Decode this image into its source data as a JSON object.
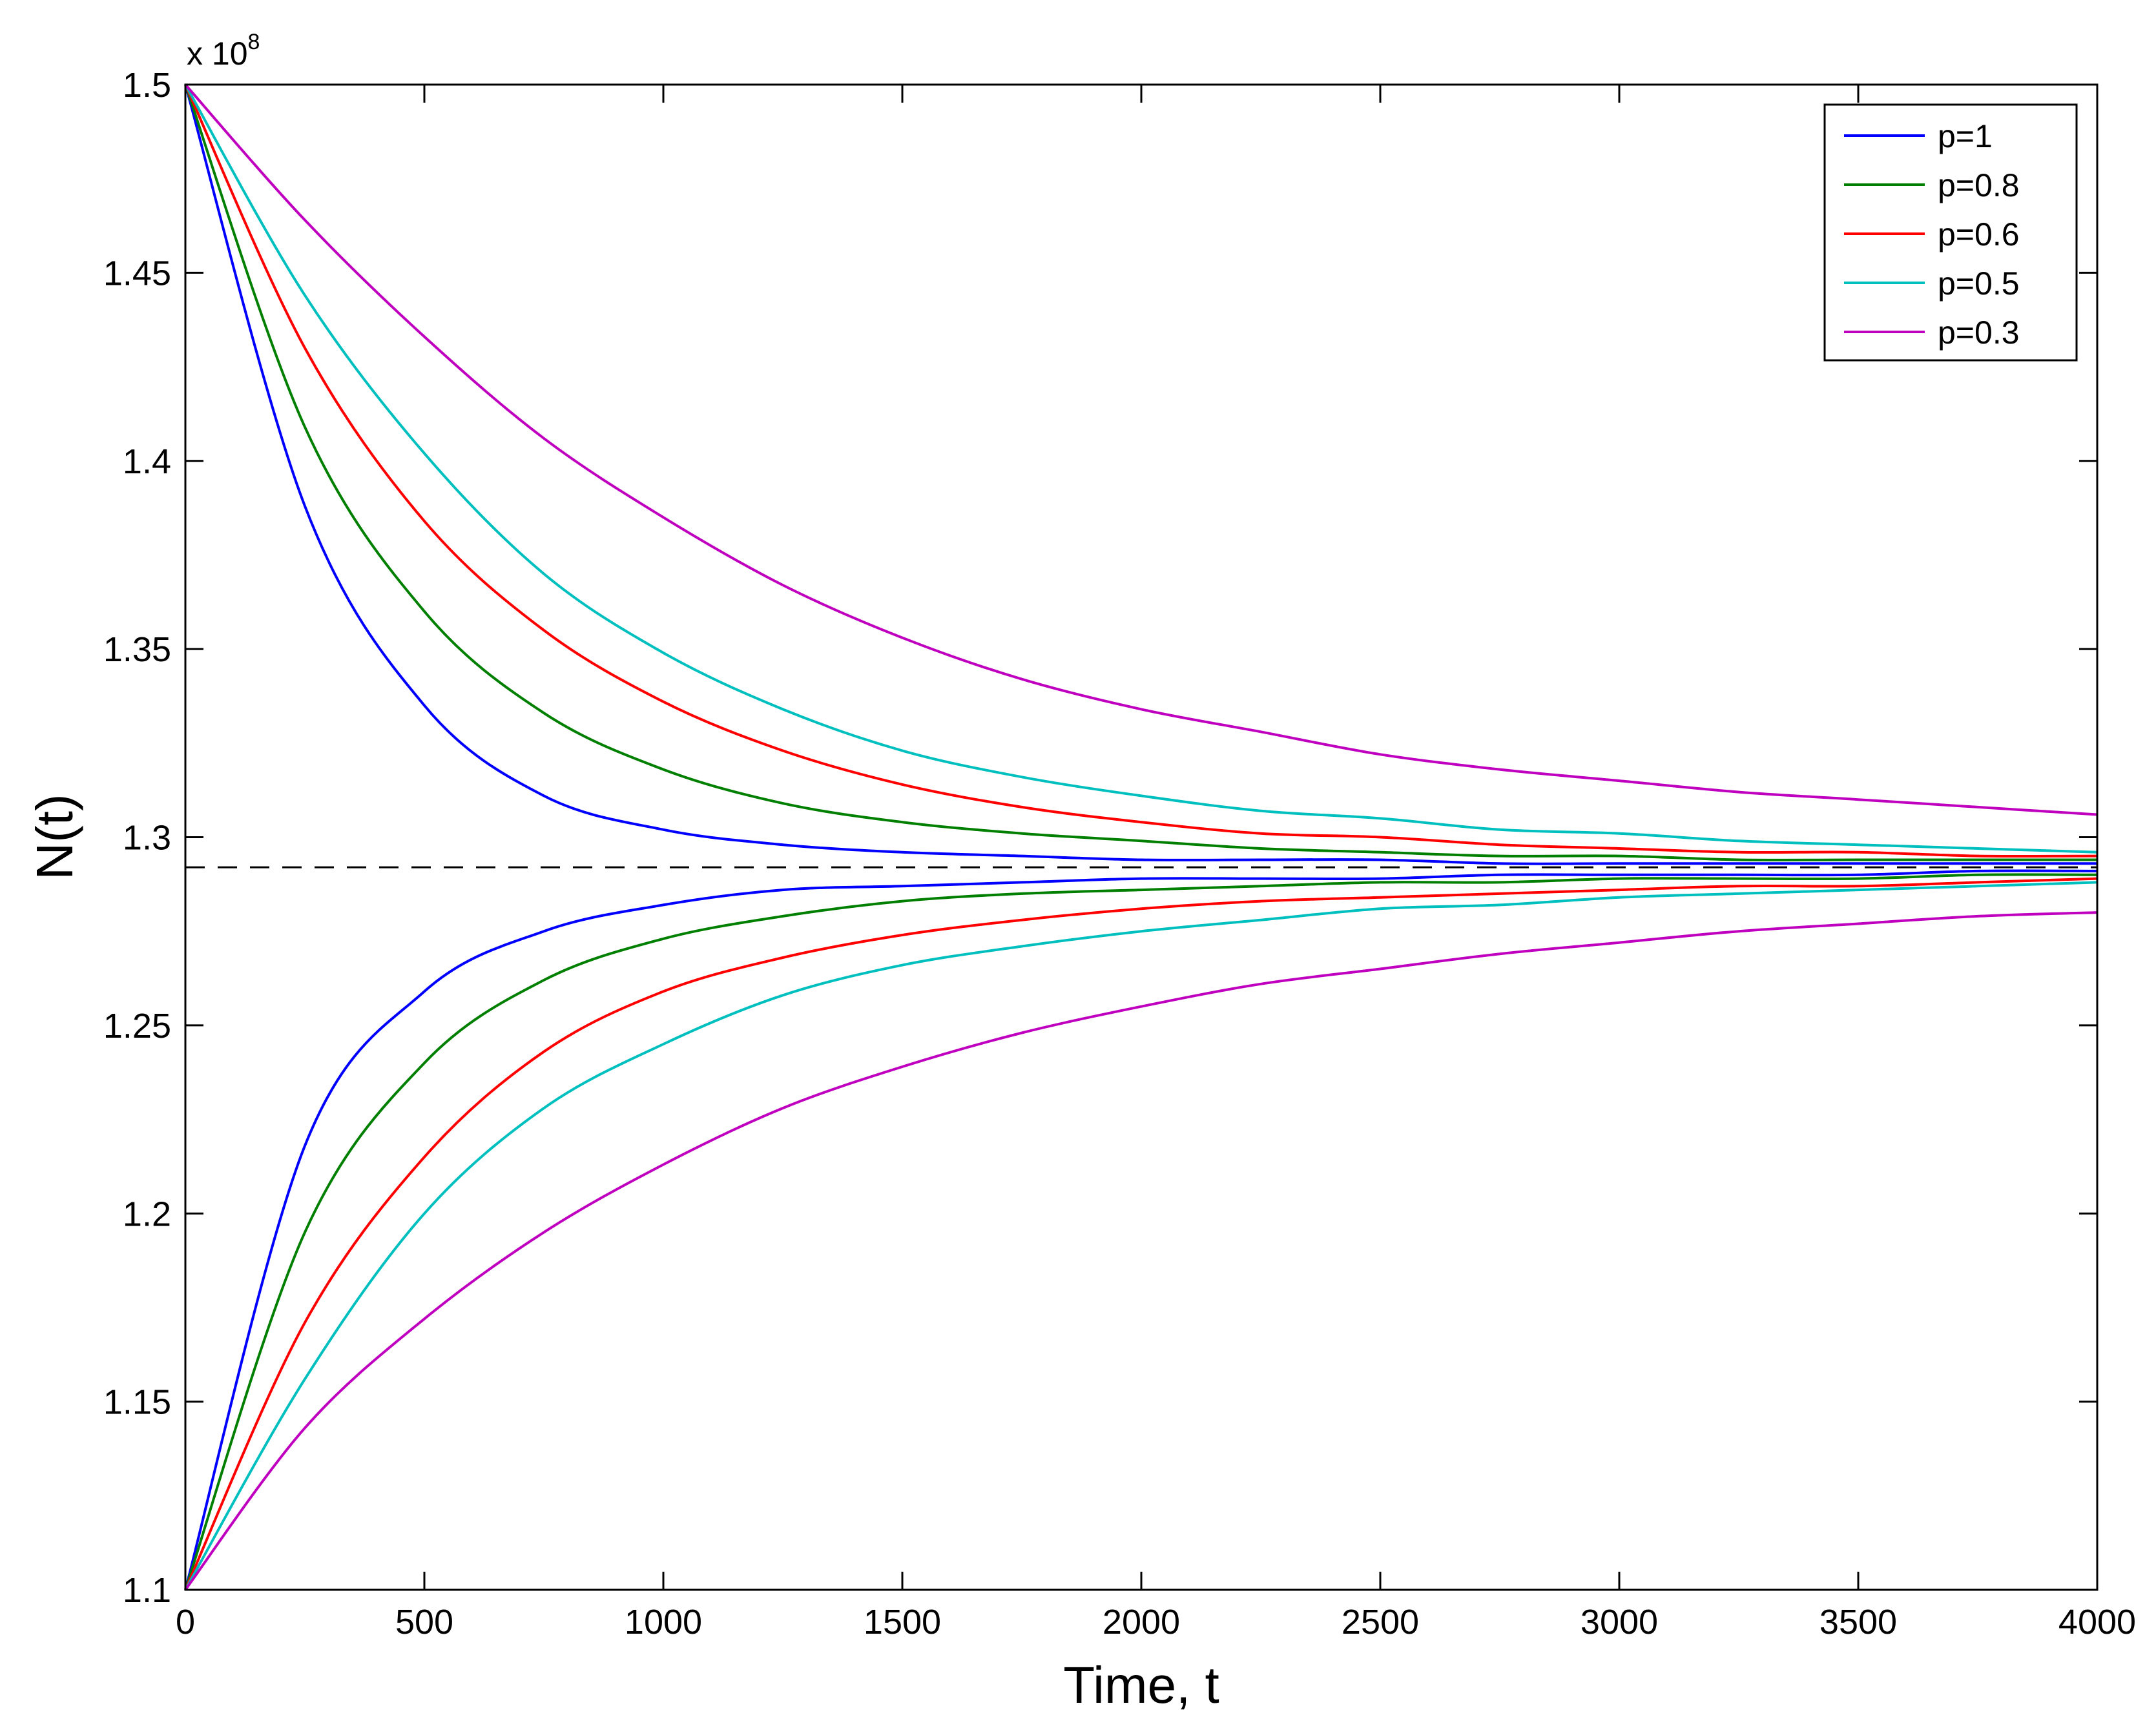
{
  "chart_data": {
    "type": "line",
    "title": "",
    "xlabel": "Time, t",
    "ylabel": "N(t)",
    "xlim": [
      0,
      4000
    ],
    "ylim": [
      1.1,
      1.5
    ],
    "y_multiplier": "x 10",
    "y_multiplier_exp": "8",
    "xticks": [
      0,
      500,
      1000,
      1500,
      2000,
      2500,
      3000,
      3500,
      4000
    ],
    "xtick_labels": [
      "0",
      "500",
      "1000",
      "1500",
      "2000",
      "2500",
      "3000",
      "3500",
      "4000"
    ],
    "yticks": [
      1.1,
      1.15,
      1.2,
      1.25,
      1.3,
      1.35,
      1.4,
      1.45,
      1.5
    ],
    "ytick_labels": [
      "1.1",
      "1.15",
      "1.2",
      "1.25",
      "1.3",
      "1.35",
      "1.4",
      "1.45",
      "1.5"
    ],
    "grid": false,
    "legend_position": "top-right",
    "equilibrium": 1.292,
    "x": [
      0,
      250,
      500,
      750,
      1000,
      1250,
      1500,
      1750,
      2000,
      2250,
      2500,
      2750,
      3000,
      3250,
      3500,
      3750,
      4000
    ],
    "series": [
      {
        "name": "p=1",
        "color": "#0000ff",
        "values": [
          1.5,
          1.388,
          1.335,
          1.311,
          1.302,
          1.298,
          1.296,
          1.295,
          1.294,
          1.294,
          1.294,
          1.293,
          1.293,
          1.293,
          1.293,
          1.293,
          1.293
        ]
      },
      {
        "name": "p=1",
        "color": "#0000ff",
        "values": [
          1.1,
          1.218,
          1.259,
          1.275,
          1.282,
          1.286,
          1.287,
          1.288,
          1.289,
          1.289,
          1.289,
          1.29,
          1.29,
          1.29,
          1.29,
          1.291,
          1.291
        ]
      },
      {
        "name": "p=0.8",
        "color": "#007f00",
        "values": [
          1.5,
          1.409,
          1.36,
          1.333,
          1.318,
          1.309,
          1.304,
          1.301,
          1.299,
          1.297,
          1.296,
          1.295,
          1.295,
          1.294,
          1.294,
          1.294,
          1.294
        ]
      },
      {
        "name": "p=0.8",
        "color": "#007f00",
        "values": [
          1.1,
          1.195,
          1.24,
          1.262,
          1.273,
          1.279,
          1.283,
          1.285,
          1.286,
          1.287,
          1.288,
          1.288,
          1.289,
          1.289,
          1.289,
          1.29,
          1.29
        ]
      },
      {
        "name": "p=0.6",
        "color": "#ff0000",
        "values": [
          1.5,
          1.43,
          1.384,
          1.355,
          1.336,
          1.323,
          1.314,
          1.308,
          1.304,
          1.301,
          1.3,
          1.298,
          1.297,
          1.296,
          1.296,
          1.295,
          1.295
        ]
      },
      {
        "name": "p=0.6",
        "color": "#ff0000",
        "values": [
          1.1,
          1.171,
          1.215,
          1.243,
          1.259,
          1.268,
          1.274,
          1.278,
          1.281,
          1.283,
          1.284,
          1.285,
          1.286,
          1.287,
          1.287,
          1.288,
          1.289
        ]
      },
      {
        "name": "p=0.5",
        "color": "#00bfbf",
        "values": [
          1.5,
          1.444,
          1.402,
          1.37,
          1.349,
          1.334,
          1.323,
          1.316,
          1.311,
          1.307,
          1.305,
          1.302,
          1.301,
          1.299,
          1.298,
          1.297,
          1.296
        ]
      },
      {
        "name": "p=0.5",
        "color": "#00bfbf",
        "values": [
          1.1,
          1.156,
          1.2,
          1.228,
          1.245,
          1.258,
          1.266,
          1.271,
          1.275,
          1.278,
          1.281,
          1.282,
          1.284,
          1.285,
          1.286,
          1.287,
          1.288
        ]
      },
      {
        "name": "p=0.3",
        "color": "#bf00bf",
        "values": [
          1.5,
          1.464,
          1.433,
          1.406,
          1.385,
          1.367,
          1.353,
          1.342,
          1.334,
          1.328,
          1.322,
          1.318,
          1.315,
          1.312,
          1.31,
          1.308,
          1.306
        ]
      },
      {
        "name": "p=0.3",
        "color": "#bf00bf",
        "values": [
          1.1,
          1.143,
          1.172,
          1.195,
          1.213,
          1.228,
          1.239,
          1.248,
          1.255,
          1.261,
          1.265,
          1.269,
          1.272,
          1.275,
          1.277,
          1.279,
          1.28
        ]
      }
    ]
  }
}
